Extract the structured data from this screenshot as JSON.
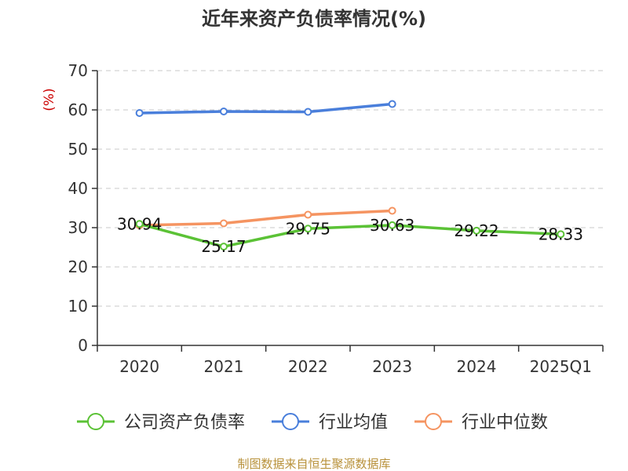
{
  "chart_data": {
    "type": "line",
    "title": "近年来资产负债率情况(%)",
    "ylabel": "(%)",
    "xlabel": "",
    "categories": [
      "2020",
      "2021",
      "2022",
      "2023",
      "2024",
      "2025Q1"
    ],
    "ylim": [
      0,
      70
    ],
    "yticks": [
      0,
      10,
      20,
      30,
      40,
      50,
      60,
      70
    ],
    "grid": true,
    "legend_position": "bottom",
    "series": [
      {
        "name": "公司资产负债率",
        "color": "#5bc236",
        "values": [
          30.94,
          25.17,
          29.75,
          30.63,
          29.22,
          28.33
        ],
        "labels": [
          "30.94",
          "25.17",
          "29.75",
          "30.63",
          "29.22",
          "28.33"
        ]
      },
      {
        "name": "行业均值",
        "color": "#4a7fdb",
        "values": [
          59.2,
          59.6,
          59.5,
          61.5,
          null,
          null
        ]
      },
      {
        "name": "行业中位数",
        "color": "#f59461",
        "values": [
          30.6,
          31.1,
          33.3,
          34.3,
          null,
          null
        ]
      }
    ]
  },
  "footer": {
    "source": "制图数据来自恒生聚源数据库"
  }
}
